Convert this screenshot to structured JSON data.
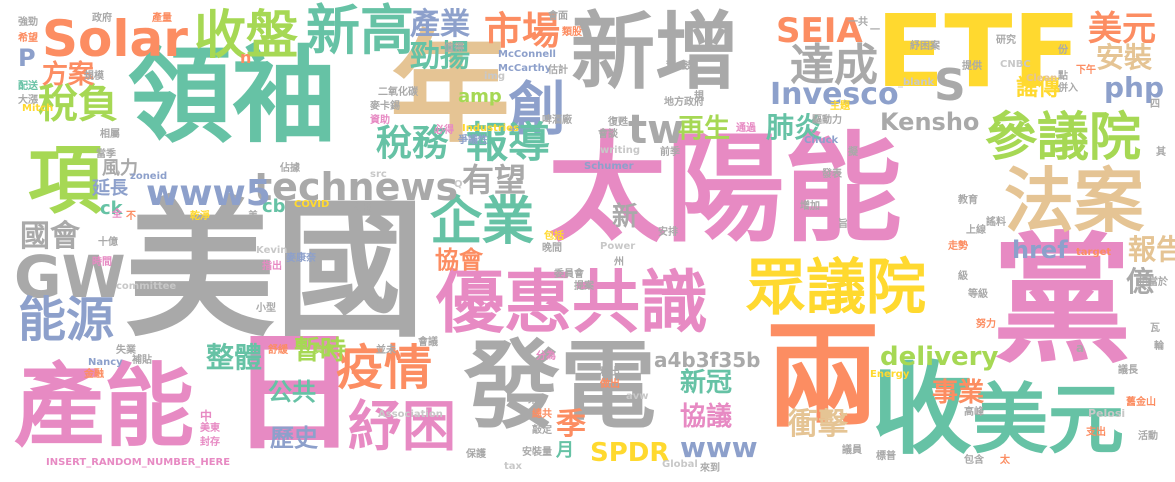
{
  "palette": {
    "gray": "#a9a9a9",
    "pink": "#e78ac3",
    "green": "#66c2a5",
    "orange": "#fc8d62",
    "blue": "#8da0cb",
    "lime": "#a6d854",
    "yellow": "#ffd92f",
    "tan": "#e5c494",
    "light_gray": "#c8c8c8"
  },
  "words": [
    {
      "text": "太陽能",
      "color": "pink"
    },
    {
      "text": "美國",
      "color": "gray"
    },
    {
      "text": "領袖",
      "color": "green"
    },
    {
      "text": "新增",
      "color": "gray"
    },
    {
      "text": "ETF",
      "color": "yellow"
    },
    {
      "text": "年",
      "color": "tan"
    },
    {
      "text": "黨",
      "color": "pink"
    },
    {
      "text": "兩",
      "color": "orange"
    },
    {
      "text": "發電",
      "color": "gray"
    },
    {
      "text": "產能",
      "color": "pink"
    },
    {
      "text": "日",
      "color": "pink"
    },
    {
      "text": "收",
      "color": "green"
    },
    {
      "text": "美元",
      "color": "green"
    },
    {
      "text": "優惠共識",
      "color": "pink"
    },
    {
      "text": "眾議院",
      "color": "yellow"
    },
    {
      "text": "法案",
      "color": "tan"
    },
    {
      "text": "參議院",
      "color": "lime"
    },
    {
      "text": "項",
      "color": "lime"
    },
    {
      "text": "GW",
      "color": "gray"
    },
    {
      "text": "Solar",
      "color": "orange"
    },
    {
      "text": "收盤",
      "color": "lime"
    },
    {
      "text": "新高",
      "color": "green"
    },
    {
      "text": "疫情",
      "color": "orange"
    },
    {
      "text": "紓困",
      "color": "pink"
    },
    {
      "text": "企業",
      "color": "green"
    },
    {
      "text": "technews",
      "color": "gray"
    },
    {
      "text": "www5",
      "color": "blue"
    },
    {
      "text": "能源",
      "color": "blue"
    },
    {
      "text": "國會",
      "color": "gray"
    },
    {
      "text": "稅負",
      "color": "lime"
    },
    {
      "text": "方案",
      "color": "orange"
    },
    {
      "text": "稅務",
      "color": "green"
    },
    {
      "text": "創",
      "color": "blue"
    },
    {
      "text": "市場",
      "color": "orange"
    },
    {
      "text": "產業",
      "color": "blue"
    },
    {
      "text": "勁揚",
      "color": "green"
    },
    {
      "text": "報導",
      "color": "green"
    },
    {
      "text": "有望",
      "color": "gray"
    },
    {
      "text": "tw",
      "color": "gray"
    },
    {
      "text": "SEIA",
      "color": "orange"
    },
    {
      "text": "達成",
      "color": "gray"
    },
    {
      "text": "S",
      "color": "gray"
    },
    {
      "text": "Invesco",
      "color": "blue"
    },
    {
      "text": "再生",
      "color": "lime"
    },
    {
      "text": "肺炎",
      "color": "green"
    },
    {
      "text": "Kensho",
      "color": "gray"
    },
    {
      "text": "美元",
      "color": "orange"
    },
    {
      "text": "安裝",
      "color": "tan"
    },
    {
      "text": "php",
      "color": "blue"
    },
    {
      "text": "謠傳",
      "color": "yellow"
    },
    {
      "text": "協會",
      "color": "orange"
    },
    {
      "text": "delivery",
      "color": "lime"
    },
    {
      "text": "整體",
      "color": "green"
    },
    {
      "text": "暫時",
      "color": "lime"
    },
    {
      "text": "公共",
      "color": "green"
    },
    {
      "text": "歷史",
      "color": "blue"
    },
    {
      "text": "新冠",
      "color": "green"
    },
    {
      "text": "協議",
      "color": "pink"
    },
    {
      "text": "www",
      "color": "blue"
    },
    {
      "text": "a4b3f35b",
      "color": "gray"
    },
    {
      "text": "報告",
      "color": "tan"
    },
    {
      "text": "億",
      "color": "gray"
    },
    {
      "text": "事業",
      "color": "orange"
    },
    {
      "text": "季",
      "color": "orange"
    },
    {
      "text": "SPDR",
      "color": "yellow"
    },
    {
      "text": "衝擊",
      "color": "tan"
    },
    {
      "text": "href",
      "color": "blue"
    },
    {
      "text": "新",
      "color": "gray"
    },
    {
      "text": "P",
      "color": "blue"
    },
    {
      "text": "amp",
      "color": "lime"
    },
    {
      "text": "風力",
      "color": "gray"
    },
    {
      "text": "延長",
      "color": "blue"
    },
    {
      "text": "月",
      "color": "green"
    },
    {
      "text": "cb",
      "color": "green"
    },
    {
      "text": "ck",
      "color": "green"
    },
    {
      "text": "INSERT_RANDOM_NUMBER_HERE",
      "color": "pink"
    },
    {
      "text": "McConnell",
      "color": "blue"
    },
    {
      "text": "McCarthy",
      "color": "blue"
    },
    {
      "text": "Chuck",
      "color": "blue"
    },
    {
      "text": "Schumer",
      "color": "blue"
    },
    {
      "text": "Pelosi",
      "color": "light_gray"
    },
    {
      "text": "Nancy",
      "color": "blue"
    },
    {
      "text": "Kevin",
      "color": "light_gray"
    },
    {
      "text": "Mitch",
      "color": "yellow"
    },
    {
      "text": "COVID",
      "color": "yellow"
    },
    {
      "text": "Power",
      "color": "light_gray"
    },
    {
      "text": "Energy",
      "color": "yellow"
    },
    {
      "text": "CNBC",
      "color": "light_gray"
    },
    {
      "text": "Clean",
      "color": "tan"
    },
    {
      "text": "Global",
      "color": "light_gray"
    },
    {
      "text": "Industries",
      "color": "yellow"
    },
    {
      "text": "Association",
      "color": "light_gray"
    },
    {
      "text": "committee",
      "color": "light_gray"
    },
    {
      "text": "tax",
      "color": "light_gray"
    },
    {
      "text": "writing",
      "color": "light_gray"
    },
    {
      "text": "avw",
      "color": "light_gray"
    },
    {
      "text": "zoneid",
      "color": "blue"
    },
    {
      "text": "target",
      "color": "orange"
    },
    {
      "text": "_blank",
      "color": "light_gray"
    },
    {
      "text": "img",
      "color": "light_gray"
    },
    {
      "text": "src",
      "color": "light_gray"
    },
    {
      "text": "a",
      "color": "gray"
    },
    {
      "text": "n",
      "color": "orange"
    },
    {
      "text": "Q",
      "color": "light_gray"
    },
    {
      "text": "二氧化碳",
      "color": "gray"
    },
    {
      "text": "麥卡錫",
      "color": "gray"
    },
    {
      "text": "資助",
      "color": "pink"
    },
    {
      "text": "必得",
      "color": "pink"
    },
    {
      "text": "估計",
      "color": "gray"
    },
    {
      "text": "值得",
      "color": "gray"
    },
    {
      "text": "類股",
      "color": "orange"
    },
    {
      "text": "會面",
      "color": "gray"
    },
    {
      "text": "政府",
      "color": "gray"
    },
    {
      "text": "產量",
      "color": "orange"
    },
    {
      "text": "強勁",
      "color": "gray"
    },
    {
      "text": "希望",
      "color": "orange"
    },
    {
      "text": "配送",
      "color": "green"
    },
    {
      "text": "大漲",
      "color": "gray"
    },
    {
      "text": "相屬",
      "color": "gray"
    },
    {
      "text": "當季",
      "color": "gray"
    },
    {
      "text": "規模",
      "color": "gray"
    },
    {
      "text": "地方政府",
      "color": "gray"
    },
    {
      "text": "主題",
      "color": "yellow"
    },
    {
      "text": "驅動力",
      "color": "gray"
    },
    {
      "text": "復甦",
      "color": "gray"
    },
    {
      "text": "爭議性",
      "color": "blue"
    },
    {
      "text": "啤酒廠",
      "color": "gray"
    },
    {
      "text": "會談",
      "color": "gray"
    },
    {
      "text": "通過",
      "color": "pink"
    },
    {
      "text": "前季",
      "color": "gray"
    },
    {
      "text": "佔據",
      "color": "gray"
    },
    {
      "text": "乾淨",
      "color": "yellow"
    },
    {
      "text": "時間",
      "color": "pink"
    },
    {
      "text": "不",
      "color": "orange"
    },
    {
      "text": "中",
      "color": "pink"
    },
    {
      "text": "金融",
      "color": "orange"
    },
    {
      "text": "美東",
      "color": "pink"
    },
    {
      "text": "封存",
      "color": "pink"
    },
    {
      "text": "失業",
      "color": "gray"
    },
    {
      "text": "補貼",
      "color": "gray"
    },
    {
      "text": "麥康奈",
      "color": "blue"
    },
    {
      "text": "指出",
      "color": "pink"
    },
    {
      "text": "舒緩",
      "color": "orange"
    },
    {
      "text": "負債",
      "color": "lime"
    },
    {
      "text": "並未",
      "color": "gray"
    },
    {
      "text": "會議",
      "color": "gray"
    },
    {
      "text": "委員會",
      "color": "gray"
    },
    {
      "text": "提案",
      "color": "gray"
    },
    {
      "text": "保險",
      "color": "gray"
    },
    {
      "text": "包括",
      "color": "yellow"
    },
    {
      "text": "晚間",
      "color": "gray"
    },
    {
      "text": "第一",
      "color": "gray"
    },
    {
      "text": "小型",
      "color": "gray"
    },
    {
      "text": "分為",
      "color": "pink"
    },
    {
      "text": "釋出",
      "color": "gray"
    },
    {
      "text": "做出",
      "color": "orange"
    },
    {
      "text": "總共",
      "color": "orange"
    },
    {
      "text": "敲定",
      "color": "gray"
    },
    {
      "text": "安裝量",
      "color": "gray"
    },
    {
      "text": "保護",
      "color": "gray"
    },
    {
      "text": "來到",
      "color": "gray"
    },
    {
      "text": "議員",
      "color": "gray"
    },
    {
      "text": "標普",
      "color": "gray"
    },
    {
      "text": "包含",
      "color": "gray"
    },
    {
      "text": "支出",
      "color": "orange"
    },
    {
      "text": "活動",
      "color": "gray"
    },
    {
      "text": "議長",
      "color": "gray"
    },
    {
      "text": "舊金山",
      "color": "orange"
    },
    {
      "text": "輪",
      "color": "gray"
    },
    {
      "text": "瓦",
      "color": "gray"
    },
    {
      "text": "努力",
      "color": "orange"
    },
    {
      "text": "高峰",
      "color": "gray"
    },
    {
      "text": "等級",
      "color": "gray"
    },
    {
      "text": "相當於",
      "color": "gray"
    },
    {
      "text": "增加",
      "color": "gray"
    },
    {
      "text": "教育",
      "color": "gray"
    },
    {
      "text": "上線",
      "color": "gray"
    },
    {
      "text": "謠料",
      "color": "gray"
    },
    {
      "text": "走勢",
      "color": "orange"
    },
    {
      "text": "級",
      "color": "gray"
    },
    {
      "text": "旨",
      "color": "gray"
    },
    {
      "text": "發表",
      "color": "gray"
    },
    {
      "text": "擬",
      "color": "gray"
    },
    {
      "text": "紓困案",
      "color": "gray"
    },
    {
      "text": "提供",
      "color": "gray"
    },
    {
      "text": "研究",
      "color": "gray"
    },
    {
      "text": "份",
      "color": "gray"
    },
    {
      "text": "下午",
      "color": "orange"
    },
    {
      "text": "點",
      "color": "gray"
    },
    {
      "text": "併入",
      "color": "gray"
    },
    {
      "text": "四",
      "color": "gray"
    },
    {
      "text": "一共",
      "color": "gray"
    },
    {
      "text": "其",
      "color": "gray"
    },
    {
      "text": "安排",
      "color": "gray"
    },
    {
      "text": "十億",
      "color": "gray"
    },
    {
      "text": "州",
      "color": "gray"
    },
    {
      "text": "鼓",
      "color": "gray"
    },
    {
      "text": "一",
      "color": "gray"
    },
    {
      "text": "具",
      "color": "gray"
    },
    {
      "text": "太",
      "color": "orange"
    },
    {
      "text": "全",
      "color": "pink"
    },
    {
      "text": "美",
      "color": "gray"
    },
    {
      "text": "規",
      "color": "gray"
    },
    {
      "text": "來",
      "color": "gray"
    }
  ]
}
